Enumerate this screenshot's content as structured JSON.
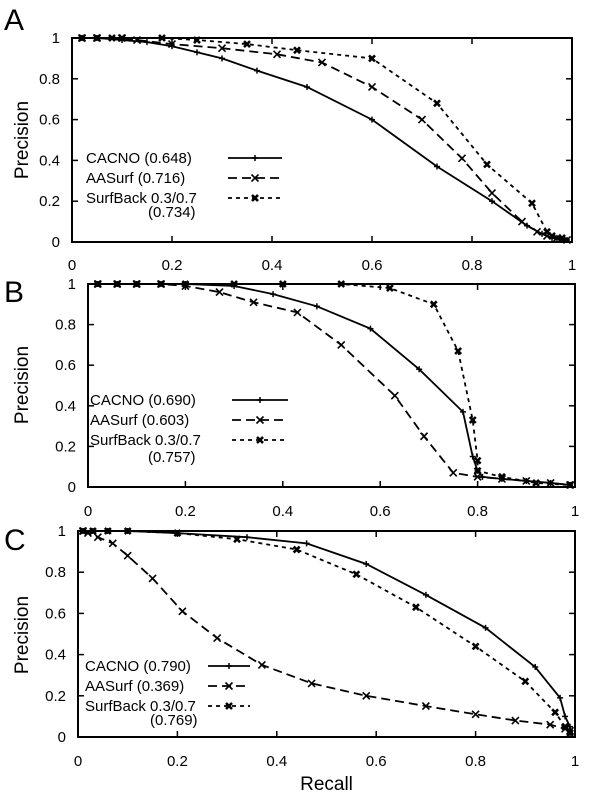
{
  "chart_data": [
    {
      "type": "line",
      "panel": "A",
      "ylabel": "Precision",
      "xlabel": "",
      "xlim": [
        0,
        1
      ],
      "ylim": [
        0,
        1
      ],
      "xticks": [
        "0",
        "0.2",
        "0.4",
        "0.6",
        "0.8",
        "1"
      ],
      "yticks": [
        "0",
        "0.2",
        "0.4",
        "0.6",
        "0.8",
        "1"
      ],
      "legend_position": "left-middle",
      "series": [
        {
          "name": "CACNO",
          "auc": "(0.648)",
          "style": "solid",
          "marker": "plus",
          "x": [
            0.02,
            0.05,
            0.1,
            0.15,
            0.2,
            0.25,
            0.3,
            0.37,
            0.47,
            0.6,
            0.73,
            0.84,
            0.91,
            0.94,
            0.96,
            0.97,
            0.98,
            0.99
          ],
          "y": [
            1.0,
            1.0,
            0.99,
            0.98,
            0.96,
            0.93,
            0.9,
            0.84,
            0.76,
            0.6,
            0.37,
            0.2,
            0.08,
            0.04,
            0.02,
            0.02,
            0.01,
            0.01
          ]
        },
        {
          "name": "AASurf",
          "auc": "(0.716)",
          "style": "dashed",
          "marker": "x",
          "x": [
            0.02,
            0.05,
            0.1,
            0.13,
            0.2,
            0.3,
            0.41,
            0.5,
            0.6,
            0.7,
            0.78,
            0.84,
            0.9,
            0.93,
            0.95,
            0.97,
            0.99
          ],
          "y": [
            1.0,
            1.0,
            1.0,
            0.99,
            0.97,
            0.95,
            0.92,
            0.88,
            0.76,
            0.6,
            0.41,
            0.24,
            0.1,
            0.05,
            0.03,
            0.02,
            0.01
          ]
        },
        {
          "name": "SurfBack 0.3/0.7",
          "auc": "(0.734)",
          "style": "dotted",
          "marker": "filled-x",
          "x": [
            0.02,
            0.05,
            0.08,
            0.1,
            0.18,
            0.25,
            0.35,
            0.45,
            0.6,
            0.73,
            0.83,
            0.92,
            0.95,
            0.96,
            0.98
          ],
          "y": [
            1.0,
            1.0,
            1.0,
            1.0,
            1.0,
            0.99,
            0.97,
            0.94,
            0.9,
            0.68,
            0.38,
            0.19,
            0.05,
            0.03,
            0.02
          ]
        }
      ]
    },
    {
      "type": "line",
      "panel": "B",
      "ylabel": "Precision",
      "xlabel": "",
      "xlim": [
        0,
        1
      ],
      "ylim": [
        0,
        1
      ],
      "xticks": [
        "0",
        "0.2",
        "0.4",
        "0.6",
        "0.8",
        "1"
      ],
      "yticks": [
        "0",
        "0.2",
        "0.4",
        "0.6",
        "0.8",
        "1"
      ],
      "legend_position": "left-bottom",
      "series": [
        {
          "name": "CACNO",
          "auc": "(0.690)",
          "style": "solid",
          "marker": "plus",
          "x": [
            0.02,
            0.06,
            0.1,
            0.15,
            0.2,
            0.3,
            0.38,
            0.47,
            0.58,
            0.68,
            0.77,
            0.79,
            0.8,
            0.81,
            0.85,
            0.9,
            0.95,
            0.99
          ],
          "y": [
            1.0,
            1.0,
            1.0,
            1.0,
            1.0,
            0.99,
            0.95,
            0.89,
            0.78,
            0.58,
            0.37,
            0.15,
            0.08,
            0.05,
            0.04,
            0.03,
            0.02,
            0.01
          ]
        },
        {
          "name": "AASurf",
          "auc": "(0.603)",
          "style": "dashed",
          "marker": "x",
          "x": [
            0.02,
            0.06,
            0.1,
            0.15,
            0.2,
            0.27,
            0.34,
            0.43,
            0.52,
            0.63,
            0.69,
            0.75,
            0.8,
            0.85,
            0.9,
            0.95,
            0.99
          ],
          "y": [
            1.0,
            1.0,
            1.0,
            1.0,
            0.99,
            0.96,
            0.91,
            0.86,
            0.7,
            0.45,
            0.25,
            0.07,
            0.05,
            0.04,
            0.03,
            0.02,
            0.01
          ]
        },
        {
          "name": "SurfBack 0.3/0.7",
          "auc": "(0.757)",
          "style": "dotted",
          "marker": "filled-x",
          "x": [
            0.02,
            0.06,
            0.1,
            0.15,
            0.2,
            0.3,
            0.4,
            0.52,
            0.62,
            0.71,
            0.76,
            0.79,
            0.8,
            0.8,
            0.85,
            0.92,
            0.99
          ],
          "y": [
            1.0,
            1.0,
            1.0,
            1.0,
            1.0,
            1.0,
            1.0,
            1.0,
            0.98,
            0.9,
            0.67,
            0.33,
            0.13,
            0.08,
            0.05,
            0.02,
            0.01
          ]
        }
      ]
    },
    {
      "type": "line",
      "panel": "C",
      "ylabel": "Precision",
      "xlabel": "Recall",
      "xlim": [
        0,
        1
      ],
      "ylim": [
        0,
        1
      ],
      "xticks": [
        "0",
        "0.2",
        "0.4",
        "0.6",
        "0.8",
        "1"
      ],
      "yticks": [
        "0",
        "0.2",
        "0.4",
        "0.6",
        "0.8",
        "1"
      ],
      "legend_position": "left-bottom",
      "series": [
        {
          "name": "CACNO",
          "auc": "(0.790)",
          "style": "solid",
          "marker": "plus",
          "x": [
            0.01,
            0.03,
            0.06,
            0.1,
            0.2,
            0.34,
            0.46,
            0.58,
            0.7,
            0.82,
            0.92,
            0.97,
            0.98,
            0.99,
            0.99
          ],
          "y": [
            1.0,
            1.0,
            1.0,
            1.0,
            0.99,
            0.97,
            0.94,
            0.84,
            0.69,
            0.53,
            0.34,
            0.19,
            0.1,
            0.05,
            0.02
          ]
        },
        {
          "name": "AASurf",
          "auc": "(0.369)",
          "style": "dashed",
          "marker": "x",
          "x": [
            0.01,
            0.02,
            0.04,
            0.07,
            0.1,
            0.15,
            0.21,
            0.28,
            0.37,
            0.47,
            0.58,
            0.7,
            0.8,
            0.88,
            0.95,
            0.98,
            0.99
          ],
          "y": [
            1.0,
            0.99,
            0.97,
            0.94,
            0.88,
            0.77,
            0.61,
            0.48,
            0.35,
            0.26,
            0.2,
            0.15,
            0.11,
            0.08,
            0.06,
            0.04,
            0.03
          ]
        },
        {
          "name": "SurfBack 0.3/0.7",
          "auc": "(0.769)",
          "style": "dotted",
          "marker": "filled-x",
          "x": [
            0.01,
            0.03,
            0.06,
            0.1,
            0.2,
            0.32,
            0.44,
            0.56,
            0.68,
            0.8,
            0.9,
            0.96,
            0.98,
            0.99
          ],
          "y": [
            1.0,
            1.0,
            1.0,
            1.0,
            0.99,
            0.96,
            0.91,
            0.79,
            0.63,
            0.44,
            0.27,
            0.12,
            0.05,
            0.02
          ]
        }
      ]
    }
  ]
}
